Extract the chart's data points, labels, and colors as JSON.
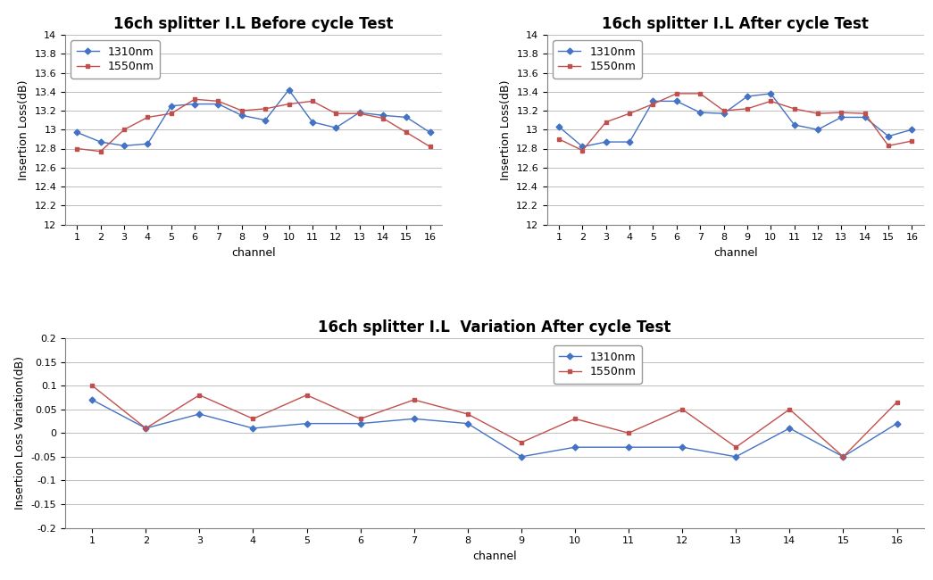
{
  "channels": [
    1,
    2,
    3,
    4,
    5,
    6,
    7,
    8,
    9,
    10,
    11,
    12,
    13,
    14,
    15,
    16
  ],
  "before_1310": [
    12.97,
    12.87,
    12.83,
    12.85,
    13.25,
    13.27,
    13.27,
    13.15,
    13.1,
    13.42,
    13.08,
    13.02,
    13.18,
    13.15,
    13.13,
    12.97
  ],
  "before_1550": [
    12.8,
    12.77,
    13.0,
    13.13,
    13.17,
    13.32,
    13.3,
    13.2,
    13.22,
    13.27,
    13.3,
    13.17,
    13.17,
    13.12,
    12.97,
    12.82
  ],
  "after_1310": [
    13.03,
    12.82,
    12.87,
    12.87,
    13.3,
    13.3,
    13.18,
    13.17,
    13.35,
    13.38,
    13.05,
    13.0,
    13.13,
    13.13,
    12.93,
    13.0
  ],
  "after_1550": [
    12.9,
    12.78,
    13.08,
    13.17,
    13.27,
    13.38,
    13.38,
    13.2,
    13.22,
    13.3,
    13.22,
    13.17,
    13.18,
    13.17,
    12.83,
    12.88
  ],
  "var_1310": [
    0.07,
    0.01,
    0.04,
    0.01,
    0.02,
    0.02,
    0.03,
    0.02,
    -0.05,
    -0.03,
    -0.03,
    -0.03,
    -0.05,
    0.01,
    -0.05,
    0.02
  ],
  "var_1550": [
    0.1,
    0.01,
    0.08,
    0.03,
    0.08,
    0.03,
    0.07,
    0.04,
    -0.02,
    0.03,
    0.0,
    0.05,
    -0.03,
    0.05,
    -0.05,
    0.065
  ],
  "title_before": "16ch splitter I.L Before cycle Test",
  "title_after": "16ch splitter I.L After cycle Test",
  "title_var": "16ch splitter I.L  Variation After cycle Test",
  "ylabel_il": "Insertion Loss(dB)",
  "ylabel_var": "Insertion Loss Variation(dB)",
  "xlabel": "channel",
  "ylim_il": [
    12,
    14
  ],
  "yticks_il": [
    12,
    12.2,
    12.4,
    12.6,
    12.8,
    13,
    13.2,
    13.4,
    13.6,
    13.8,
    14
  ],
  "ylim_var": [
    -0.2,
    0.2
  ],
  "yticks_var": [
    -0.2,
    -0.15,
    -0.1,
    -0.05,
    0,
    0.05,
    0.1,
    0.15,
    0.2
  ],
  "color_1310": "#4472C4",
  "color_1550": "#C0504D",
  "label_1310": "1310nm",
  "label_1550": "1550nm",
  "title_fontsize": 12,
  "axis_fontsize": 9,
  "tick_fontsize": 8,
  "legend_fontsize": 9
}
